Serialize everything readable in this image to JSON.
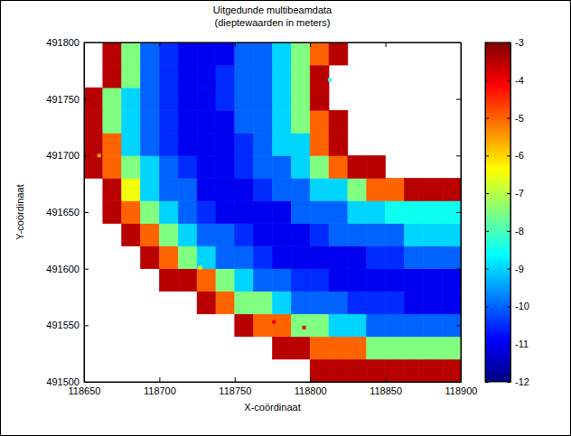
{
  "chart_data": {
    "type": "heatmap",
    "title": "Uitgedunde multibeamdata",
    "subtitle": "(dieptewaarden in meters)",
    "xlabel": "X-coördinaat",
    "ylabel": "Y-coördinaat",
    "xlim": [
      118650,
      118900
    ],
    "xticks": [
      118650,
      118700,
      118750,
      118800,
      118850,
      118900
    ],
    "ylim": [
      491500,
      491800
    ],
    "yticks": [
      491500,
      491550,
      491600,
      491650,
      491700,
      491750,
      491800
    ],
    "x_bins": [
      118650,
      118662.5,
      118675,
      118687.5,
      118700,
      118712.5,
      118725,
      118737.5,
      118750,
      118762.5,
      118775,
      118787.5,
      118800,
      118812.5,
      118825,
      118837.5,
      118850,
      118862.5,
      118875,
      118887.5,
      118900
    ],
    "y_bins": [
      491500,
      491520,
      491540,
      491560,
      491580,
      491600,
      491620,
      491640,
      491660,
      491680,
      491700,
      491720,
      491740,
      491760,
      491780,
      491800
    ],
    "cells": [
      [
        null,
        null,
        null,
        null,
        null,
        null,
        null,
        null,
        null,
        null,
        null,
        null,
        -3.5,
        -3.5,
        -3.5,
        -3.5,
        -3.5,
        -3.5,
        -3.5,
        -3.5
      ],
      [
        null,
        null,
        null,
        null,
        null,
        null,
        null,
        null,
        null,
        null,
        -3.5,
        -3.5,
        -5,
        -5,
        -5,
        -7.5,
        -7.5,
        -7.5,
        -7.5,
        -7.5
      ],
      [
        null,
        null,
        null,
        null,
        null,
        null,
        null,
        null,
        -3.5,
        -5,
        -5,
        -7.5,
        -7.5,
        -9,
        -9,
        -10,
        -10,
        -10,
        -10,
        -10
      ],
      [
        null,
        null,
        null,
        null,
        null,
        null,
        -3.5,
        -5,
        -7.5,
        -7.5,
        -9,
        -10,
        -10,
        -10,
        -10.5,
        -10.5,
        -10.5,
        -11,
        -11,
        -11
      ],
      [
        null,
        null,
        null,
        null,
        -3.5,
        -3.5,
        -5,
        -7.5,
        -9,
        -10,
        -10,
        -10.5,
        -10.5,
        -11,
        -11,
        -11,
        -11,
        -11,
        -11,
        -11
      ],
      [
        null,
        null,
        null,
        -3.5,
        -5,
        -7.5,
        -9,
        -10,
        -10,
        -10.5,
        -11,
        -11,
        -11,
        -11,
        -11,
        -10.5,
        -10.5,
        -10,
        -10,
        -10
      ],
      [
        null,
        null,
        -3.5,
        -5,
        -7.5,
        -9,
        -10,
        -10,
        -10.5,
        -11,
        -11,
        -11,
        -10.5,
        -10,
        -10,
        -10,
        -10,
        -9,
        -9,
        -9
      ],
      [
        null,
        -3.5,
        -5,
        -7.5,
        -9,
        -10,
        -10.5,
        -11,
        -11,
        -11,
        -11,
        -10,
        -10,
        -10,
        -9,
        -9,
        -8.5,
        -8.5,
        -8.5,
        -8.5
      ],
      [
        null,
        -3.5,
        -6.5,
        -9,
        -10,
        -10,
        -11,
        -11,
        -11,
        -10.5,
        -10,
        -10,
        -9,
        -9,
        -7.5,
        -5,
        -5,
        -3.5,
        -3.5,
        -3.5
      ],
      [
        -3.5,
        -5,
        -7.5,
        -9,
        -10,
        -10.5,
        -11,
        -11,
        -10.5,
        -10,
        -10,
        -9,
        -7.5,
        -5,
        -3.5,
        -3.5,
        null,
        null,
        null,
        null
      ],
      [
        -3.5,
        -5,
        -9,
        -10,
        -10.5,
        -11,
        -11,
        -11,
        -10.5,
        -10,
        -9,
        -9,
        -5,
        -3.5,
        null,
        null,
        null,
        null,
        null,
        null
      ],
      [
        -3.5,
        -7.5,
        -9,
        -10,
        -10.5,
        -11,
        -11,
        -11,
        -10,
        -10,
        -9,
        -7.5,
        -5,
        -3.5,
        null,
        null,
        null,
        null,
        null,
        null
      ],
      [
        -3.5,
        -7.5,
        -9,
        -10,
        -10.5,
        -11,
        -11,
        -10.5,
        -10,
        -10,
        -9,
        -7.5,
        -3.5,
        null,
        null,
        null,
        null,
        null,
        null,
        null
      ],
      [
        null,
        -3.5,
        -7.5,
        -10,
        -10.5,
        -11,
        -11,
        -10.5,
        -10,
        -10,
        -9,
        -7.5,
        -3.5,
        null,
        null,
        null,
        null,
        null,
        null,
        null
      ],
      [
        null,
        -3.5,
        -7.5,
        -10,
        -10.5,
        -11,
        -11,
        -11,
        -10,
        -10,
        -9,
        -7.5,
        -5,
        -3.5,
        null,
        null,
        null,
        null,
        null,
        null
      ]
    ],
    "points": {
      "x": [
        118660,
        118718,
        118727,
        118776,
        118796,
        118813
      ],
      "y": [
        491700,
        491593,
        491601,
        491553,
        491548,
        491767
      ],
      "values": [
        -5.5,
        -3.5,
        -6.5,
        -4,
        -4,
        -8.5
      ]
    },
    "colorbar": {
      "range": [
        -12,
        -3
      ],
      "ticks": [
        -3,
        -4,
        -5,
        -6,
        -7,
        -8,
        -9,
        -10,
        -11,
        -12
      ]
    }
  }
}
